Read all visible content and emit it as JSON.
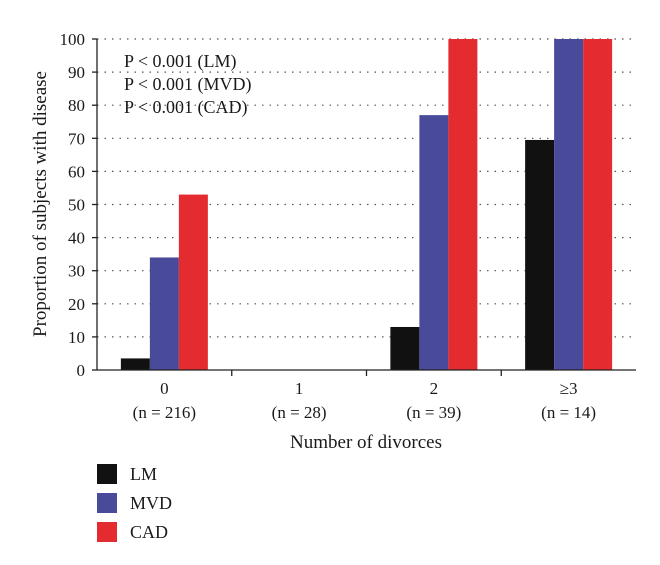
{
  "chart_data": {
    "type": "bar",
    "ylabel": "Proportion of subjects with disease",
    "xlabel": "Number of divorces",
    "ylim": [
      0,
      100
    ],
    "yticks": [
      0,
      10,
      20,
      30,
      40,
      50,
      60,
      70,
      80,
      90,
      100
    ],
    "grid": true,
    "categories": [
      "0",
      "1",
      "2",
      "≥3"
    ],
    "category_n": [
      "(n = 216)",
      "(n = 28)",
      "(n = 39)",
      "(n = 14)"
    ],
    "series": [
      {
        "name": "LM",
        "color": "#111111",
        "values": [
          3.5,
          0,
          13,
          69.5
        ]
      },
      {
        "name": "MVD",
        "color": "#4a4a9a",
        "values": [
          34,
          0,
          77,
          100
        ]
      },
      {
        "name": "CAD",
        "color": "#e42c30",
        "values": [
          53,
          0,
          100,
          100
        ]
      }
    ],
    "annotations": [
      "P < 0.001 (LM)",
      "P < 0.001 (MVD)",
      "P < 0.001 (CAD)"
    ],
    "legend_position": "bottom-left"
  }
}
